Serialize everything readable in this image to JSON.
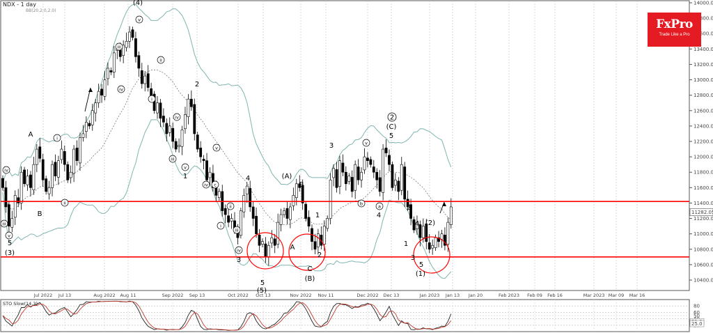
{
  "title": "NDX - 1 day",
  "indicator_label": "BB(20,2.0,2.0)",
  "logo": {
    "brand": "FxPro",
    "tagline": "Trade Like a Pro"
  },
  "colors": {
    "up": "#3a9a3a",
    "down": "#111111",
    "bands": "#7fb5b0",
    "levels": "#ff0000",
    "stoch_k": "#222222",
    "stoch_d": "#c0392b"
  },
  "chart_data": [
    {
      "type": "candlestick",
      "y_ticks": [
        10400,
        10600,
        10800,
        11000,
        11200,
        11400,
        11600,
        11800,
        12000,
        12200,
        12400,
        12600,
        12800,
        13000,
        13200,
        13400,
        13600,
        13800,
        14000
      ],
      "ylim": [
        10230,
        14000
      ],
      "x_ticks": [
        "Jul 2022",
        "Jul 13",
        "Aug 2022",
        "Aug 11",
        "Sep 2022",
        "Sep 13",
        "Oct 2022",
        "Oct 13",
        "Nov 2022",
        "Nov 11",
        "Dec 2022",
        "Dec 13",
        "Jan 2023",
        "Jan 13",
        "Jan 20",
        "Feb 2023",
        "Feb 09",
        "Feb 16",
        "Mar 2023",
        "Mar 09",
        "Mar 16"
      ],
      "last_price": "11282.05",
      "horizontal_levels": [
        11420,
        10700
      ],
      "closes": [
        11600,
        11350,
        11100,
        11200,
        11500,
        11400,
        11800,
        11650,
        11750,
        11600,
        11900,
        12100,
        11980,
        11700,
        11550,
        11600,
        11900,
        11750,
        11950,
        12100,
        11900,
        11700,
        11800,
        12100,
        11950,
        12250,
        12300,
        12450,
        12400,
        12600,
        12700,
        12850,
        12800,
        13000,
        13150,
        13100,
        13350,
        13400,
        13300,
        13450,
        13500,
        13620,
        13550,
        13300,
        13150,
        12950,
        13050,
        12900,
        12800,
        12600,
        12700,
        12500,
        12450,
        12300,
        12400,
        12200,
        12100,
        12150,
        12350,
        12550,
        12750,
        12650,
        12300,
        12100,
        12000,
        11950,
        11700,
        11800,
        11600,
        11500,
        11550,
        11300,
        11250,
        11150,
        11200,
        11050,
        10950,
        11300,
        11500,
        11620,
        11350,
        11200,
        11000,
        10850,
        10900,
        10700,
        10850,
        10950,
        10850,
        11150,
        11250,
        11300,
        11200,
        11350,
        11500,
        11650,
        11600,
        11400,
        11200,
        11100,
        10900,
        10800,
        11000,
        10850,
        11100,
        11200,
        11700,
        11850,
        11600,
        11950,
        11800,
        11650,
        11750,
        11550,
        11900,
        11700,
        11800,
        12000,
        11950,
        11900,
        11800,
        11700,
        11550,
        12100,
        12050,
        11900,
        11600,
        11700,
        11550,
        11900,
        11450,
        11350,
        11200,
        11050,
        11150,
        10950,
        11100,
        10900,
        10800,
        10850,
        10950,
        10900,
        11000,
        10850,
        11150,
        11350
      ],
      "series": [
        {
          "name": "BB(20,2.0,2.0)",
          "values": []
        }
      ],
      "wave_labels": [
        "(4)",
        "A",
        "B",
        "5",
        "(3)",
        "2",
        "1",
        "3",
        "4",
        "5",
        "(5)",
        "(A)",
        "B",
        "A",
        "C",
        "(B)",
        "1",
        "2",
        "3",
        "4",
        "5",
        "(C)",
        "1",
        "2",
        "4",
        "3",
        "5",
        "(1)",
        "(2)"
      ],
      "circled_wave_labels": [
        "2"
      ],
      "roman_labels": [
        "iv",
        "v",
        "iii",
        "ii",
        "i",
        "iv",
        "v",
        "iii",
        "i",
        "ii",
        "iv",
        "v",
        "iii",
        "iv",
        "v",
        "i",
        "ii",
        "iii",
        "iv",
        "v",
        "b",
        "a",
        "c"
      ]
    },
    {
      "type": "line",
      "title": "STO Slow(14,3)",
      "y_ticks": [
        "80",
        "60",
        "50",
        "40",
        "20"
      ],
      "last_values": [
        "31.0",
        "25.0"
      ]
    }
  ]
}
